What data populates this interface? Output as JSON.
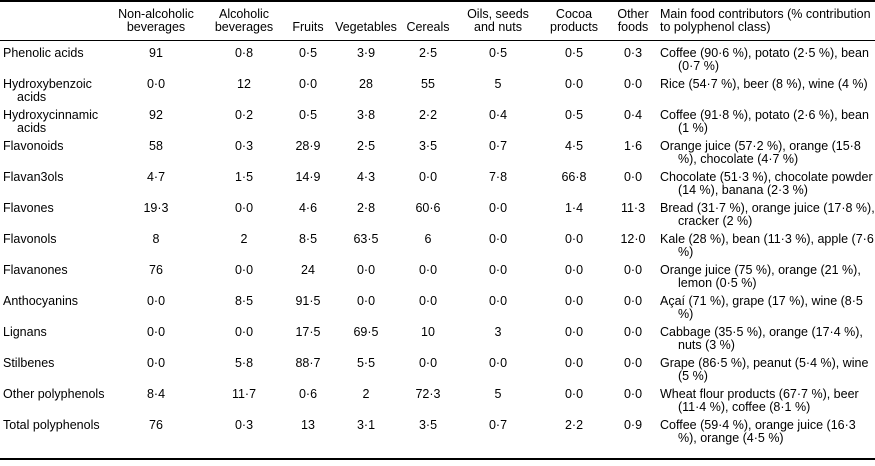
{
  "colors": {
    "text": "#000000",
    "background": "#ffffff",
    "rule": "#000000"
  },
  "table": {
    "columns": [
      "Non-alcoholic beverages",
      "Alcoholic beverages",
      "Fruits",
      "Vegetables",
      "Cereals",
      "Oils, seeds and nuts",
      "Cocoa products",
      "Other foods",
      "Main food contributors (% contribution to polyphenol class)"
    ],
    "rows": [
      {
        "name": "Phenolic acids",
        "values": [
          "91",
          "0·8",
          "0·5",
          "3·9",
          "2·5",
          "0·5",
          "0·5",
          "0·3"
        ],
        "contributors": "Coffee (90·6 %), potato (2·5 %), bean (0·7 %)"
      },
      {
        "name": "Hydroxybenzoic acids",
        "values": [
          "0·0",
          "12",
          "0·0",
          "28",
          "55",
          "5",
          "0·0",
          "0·0"
        ],
        "contributors": "Rice (54·7 %), beer (8 %), wine (4 %)"
      },
      {
        "name": "Hydroxycinnamic acids",
        "values": [
          "92",
          "0·2",
          "0·5",
          "3·8",
          "2·2",
          "0·4",
          "0·5",
          "0·4"
        ],
        "contributors": "Coffee (91·8 %), potato (2·6 %), bean (1 %)"
      },
      {
        "name": "Flavonoids",
        "values": [
          "58",
          "0·3",
          "28·9",
          "2·5",
          "3·5",
          "0·7",
          "4·5",
          "1·6"
        ],
        "contributors": "Orange juice (57·2 %), orange (15·8 %), chocolate (4·7 %)"
      },
      {
        "name": "Flavan3ols",
        "values": [
          "4·7",
          "1·5",
          "14·9",
          "4·3",
          "0·0",
          "7·8",
          "66·8",
          "0·0"
        ],
        "contributors": "Chocolate (51·3 %), chocolate powder (14 %), banana (2·3 %)"
      },
      {
        "name": "Flavones",
        "values": [
          "19·3",
          "0·0",
          "4·6",
          "2·8",
          "60·6",
          "0·0",
          "1·4",
          "11·3"
        ],
        "contributors": "Bread (31·7 %), orange juice (17·8 %), cracker (2 %)"
      },
      {
        "name": "Flavonols",
        "values": [
          "8",
          "2",
          "8·5",
          "63·5",
          "6",
          "0·0",
          "0·0",
          "12·0"
        ],
        "contributors": "Kale (28 %), bean (11·3 %), apple (7·6 %)"
      },
      {
        "name": "Flavanones",
        "values": [
          "76",
          "0·0",
          "24",
          "0·0",
          "0·0",
          "0·0",
          "0·0",
          "0·0"
        ],
        "contributors": "Orange juice (75 %), orange (21 %), lemon (0·5 %)"
      },
      {
        "name": "Anthocyanins",
        "values": [
          "0·0",
          "8·5",
          "91·5",
          "0·0",
          "0·0",
          "0·0",
          "0·0",
          "0·0"
        ],
        "contributors": "Açaí (71 %), grape (17 %), wine (8·5 %)"
      },
      {
        "name": "Lignans",
        "values": [
          "0·0",
          "0·0",
          "17·5",
          "69·5",
          "10",
          "3",
          "0·0",
          "0·0"
        ],
        "contributors": "Cabbage (35·5 %), orange (17·4 %), nuts (3 %)"
      },
      {
        "name": "Stilbenes",
        "values": [
          "0·0",
          "5·8",
          "88·7",
          "5·5",
          "0·0",
          "0·0",
          "0·0",
          "0·0"
        ],
        "contributors": "Grape (86·5 %), peanut (5·4 %), wine (5 %)"
      },
      {
        "name": "Other polyphenols",
        "values": [
          "8·4",
          "11·7",
          "0·6",
          "2",
          "72·3",
          "5",
          "0·0",
          "0·0"
        ],
        "contributors": "Wheat flour products (67·7 %), beer (11·4 %), coffee (8·1 %)"
      },
      {
        "name": "Total polyphenols",
        "values": [
          "76",
          "0·3",
          "13",
          "3·1",
          "3·5",
          "0·7",
          "2·2",
          "0·9"
        ],
        "contributors": "Coffee (59·4 %), orange juice (16·3 %), orange (4·5 %)"
      }
    ]
  }
}
